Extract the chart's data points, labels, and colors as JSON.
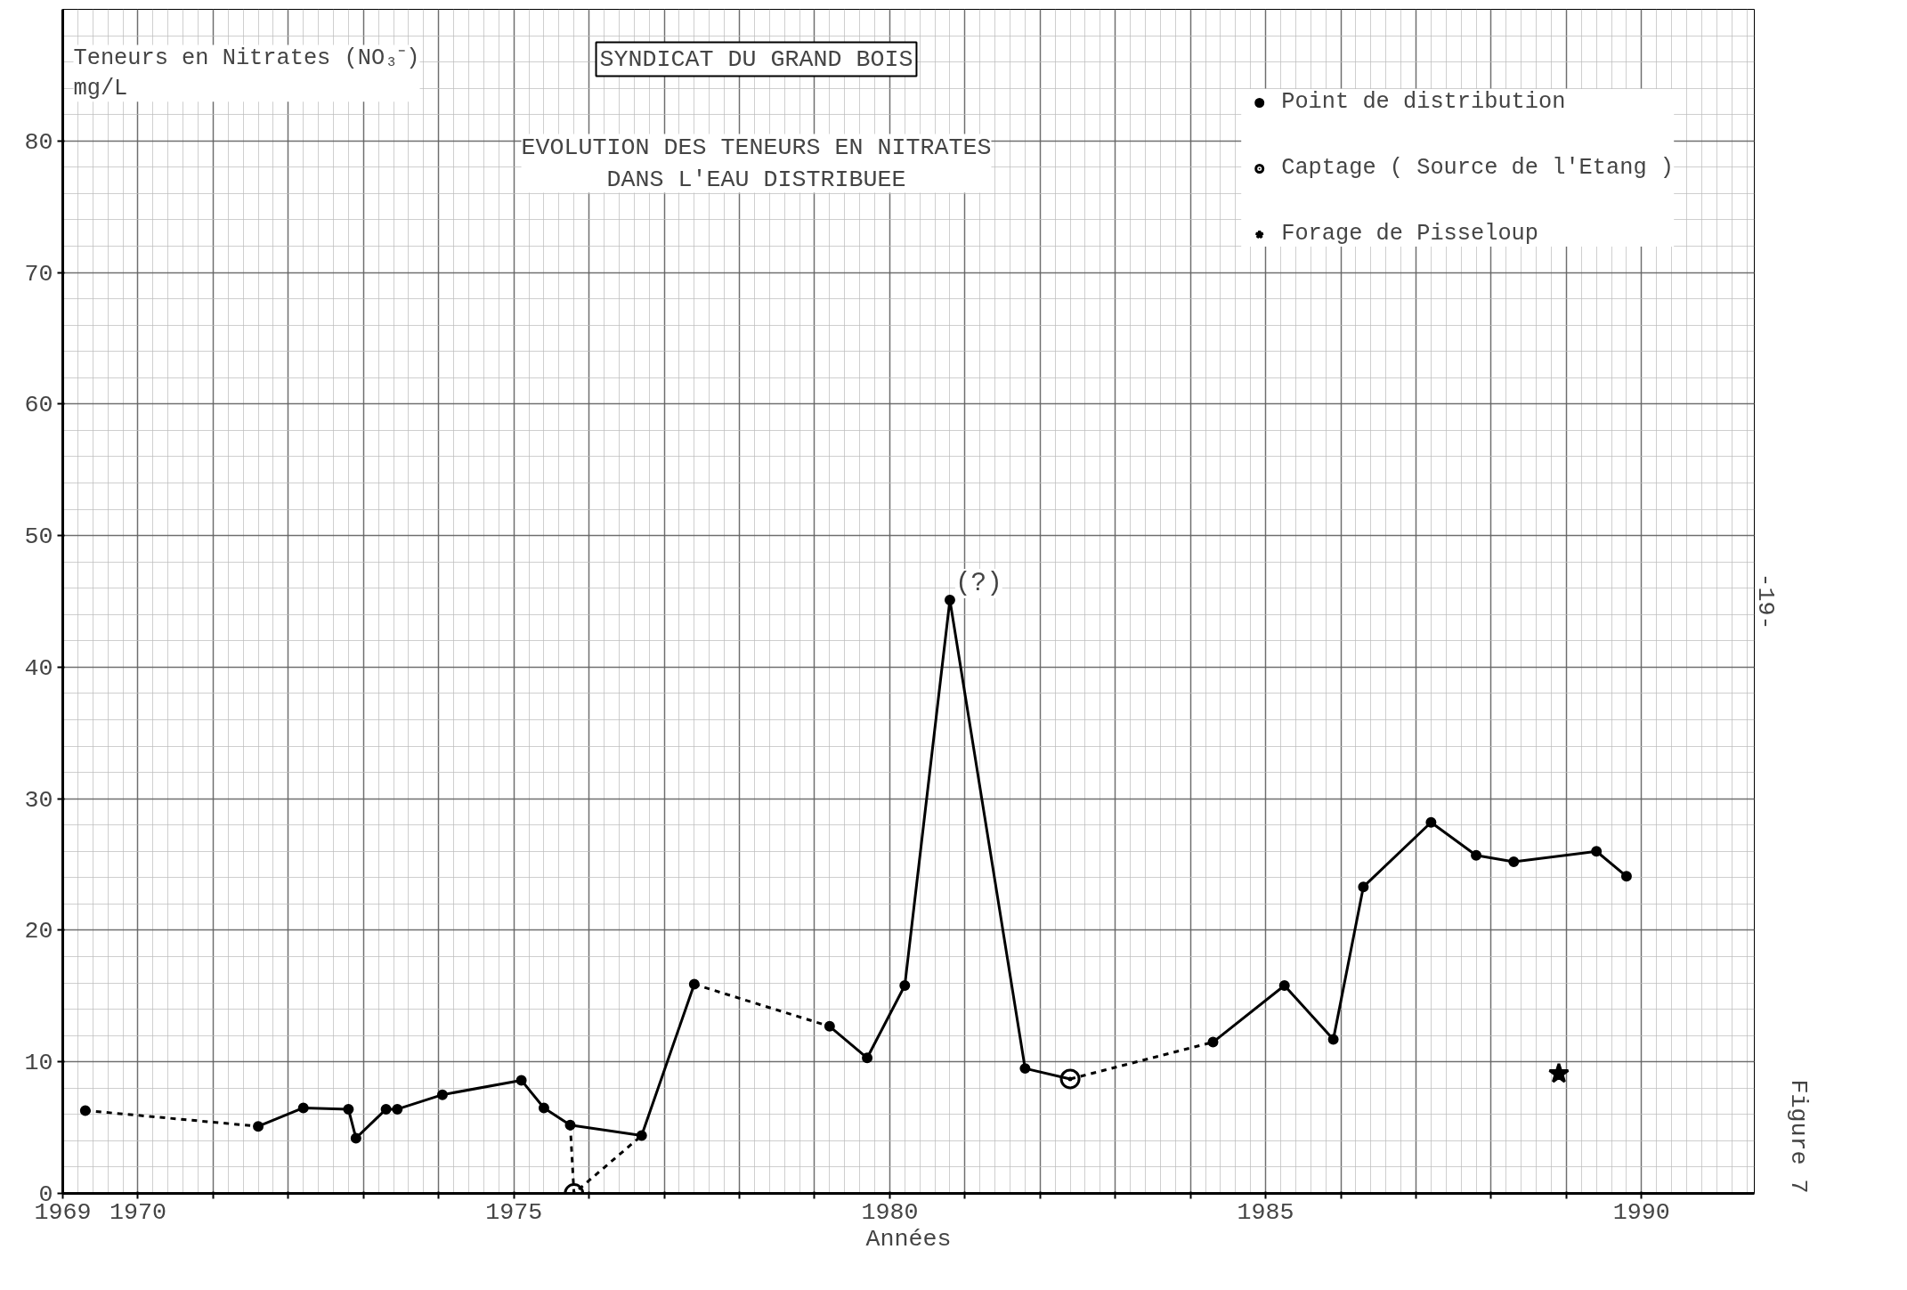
{
  "chart_data": {
    "type": "line",
    "title": "SYNDICAT DU GRAND BOIS",
    "subtitle": "EVOLUTION DES TENEURS EN NITRATES\nDANS L'EAU DISTRIBUEE",
    "ylabel": "Teneurs en Nitrates (NO₃⁻)\nmg/L",
    "xlabel": "Années",
    "xlim": [
      1969,
      1991.5
    ],
    "ylim": [
      0,
      90
    ],
    "xticks": [
      1969,
      1970,
      {
        "value": 1971,
        "label": null
      },
      {
        "value": 1972,
        "label": null
      },
      {
        "value": 1973,
        "label": null
      },
      {
        "value": 1974,
        "label": null
      },
      1975,
      {
        "value": 1976,
        "label": null
      },
      {
        "value": 1977,
        "label": null
      },
      {
        "value": 1978,
        "label": null
      },
      {
        "value": 1979,
        "label": null
      },
      1980,
      {
        "value": 1981,
        "label": null
      },
      {
        "value": 1982,
        "label": null
      },
      {
        "value": 1983,
        "label": null
      },
      {
        "value": 1984,
        "label": null
      },
      1985,
      {
        "value": 1986,
        "label": null
      },
      {
        "value": 1987,
        "label": null
      },
      {
        "value": 1988,
        "label": null
      },
      {
        "value": 1989,
        "label": null
      },
      1990
    ],
    "yticks": [
      0,
      10,
      20,
      30,
      40,
      50,
      60,
      70,
      80
    ],
    "grid": true,
    "legend": "top right",
    "series": [
      {
        "name": "Point de distribution",
        "type": "scatter",
        "marker": "circle",
        "color": "#000000",
        "x": [
          1969.3,
          1971.6,
          1972.2,
          1972.8,
          1972.9,
          1973.3,
          1973.45,
          1974.05,
          1975.1,
          1975.4,
          1975.75,
          1976.7,
          1977.4,
          1979.2,
          1979.7,
          1980.2,
          1980.8,
          1981.8,
          1984.3,
          1985.25,
          1985.9,
          1986.3,
          1987.2,
          1987.8,
          1988.3,
          1989.4,
          1989.8
        ],
        "values": [
          6.3,
          5.1,
          6.5,
          6.4,
          4.2,
          6.4,
          6.4,
          7.5,
          8.6,
          6.5,
          5.2,
          4.4,
          15.9,
          12.7,
          10.3,
          15.8,
          45.1,
          9.5,
          11.5,
          15.8,
          11.7,
          23.3,
          28.2,
          25.7,
          25.2,
          26.0,
          24.1
        ]
      },
      {
        "name": "Captage ( Source de l'Etang )",
        "type": "scatter",
        "marker": "circle_dot",
        "color": "#000000",
        "x": [
          1975.8,
          1982.4
        ],
        "values": [
          0,
          8.7
        ]
      },
      {
        "name": "Forage de Pisseloup",
        "type": "scatter",
        "marker": "star",
        "color": "#000000",
        "x": [
          1988.9
        ],
        "values": [
          9.1
        ]
      },
      {
        "line_style": "dashed",
        "color": "#000000",
        "x": [
          1969.3,
          1971.6
        ],
        "values": [
          6.3,
          5.1
        ]
      },
      {
        "line_style": "solid",
        "color": "#000000",
        "x": [
          1971.6,
          1972.2,
          1972.8,
          1972.9,
          1973.3,
          1973.45,
          1974.05,
          1975.1,
          1975.4,
          1975.75,
          1976.7,
          1977.4
        ],
        "values": [
          5.1,
          6.5,
          6.4,
          4.2,
          6.4,
          6.4,
          7.5,
          8.6,
          6.5,
          5.2,
          4.4,
          15.9
        ]
      },
      {
        "line_style": "dashed",
        "color": "#000000",
        "x": [
          1975.75,
          1975.8,
          1976.7
        ],
        "values": [
          5.2,
          0,
          4.4
        ]
      },
      {
        "line_style": "dashed",
        "color": "#000000",
        "x": [
          1977.4,
          1979.2
        ],
        "values": [
          15.9,
          12.7
        ]
      },
      {
        "line_style": "solid",
        "color": "#000000",
        "x": [
          1979.2,
          1979.7,
          1980.2,
          1980.8,
          1981.8,
          1982.4
        ],
        "values": [
          12.7,
          10.3,
          15.8,
          45.1,
          9.5,
          8.7
        ]
      },
      {
        "line_style": "dashed",
        "color": "#000000",
        "x": [
          1982.4,
          1984.3
        ],
        "values": [
          8.7,
          11.5
        ]
      },
      {
        "line_style": "solid",
        "color": "#000000",
        "x": [
          1984.3,
          1985.25,
          1985.9,
          1986.3,
          1987.2,
          1987.8,
          1988.3,
          1989.4,
          1989.8
        ],
        "values": [
          11.5,
          15.8,
          11.7,
          23.3,
          28.2,
          25.7,
          25.2,
          26.0,
          24.1
        ]
      }
    ],
    "annotations": [
      {
        "text": "(?)",
        "x": 1980.8,
        "y": 45.1
      },
      "-19-",
      "Figure 7"
    ]
  }
}
